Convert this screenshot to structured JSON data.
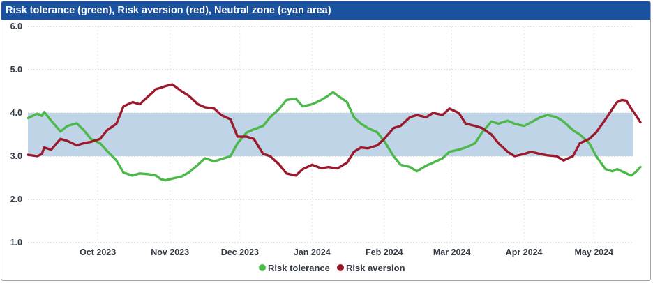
{
  "chart_data": {
    "type": "line",
    "title": "Risk tolerance (green), Risk aversion (red), Neutral zone (cyan area)",
    "ylim": [
      1.0,
      6.0
    ],
    "y_ticks": [
      "1.0",
      "2.0",
      "3.0",
      "4.0",
      "5.0",
      "6.0"
    ],
    "x_tick_labels": [
      "Oct 2023",
      "Nov 2023",
      "Dec 2023",
      "Jan 2024",
      "Feb 2024",
      "Mar 2024",
      "Apr 2024",
      "May 2024"
    ],
    "x_range": [
      "2023-09-15",
      "2024-06-01"
    ],
    "grid": true,
    "legend_position": "bottom-center",
    "neutral_zone": {
      "y0": 3.0,
      "y1": 4.0,
      "color": "#c0d4e8"
    },
    "series": [
      {
        "name": "Risk tolerance",
        "color": "#4cb849",
        "points": [
          [
            "2023-09-15",
            3.88
          ],
          [
            "2023-09-19",
            3.98
          ],
          [
            "2023-09-21",
            3.93
          ],
          [
            "2023-09-22",
            4.02
          ],
          [
            "2023-09-25",
            3.82
          ],
          [
            "2023-09-29",
            3.57
          ],
          [
            "2023-10-02",
            3.7
          ],
          [
            "2023-10-06",
            3.76
          ],
          [
            "2023-10-09",
            3.6
          ],
          [
            "2023-10-12",
            3.4
          ],
          [
            "2023-10-16",
            3.3
          ],
          [
            "2023-10-19",
            3.12
          ],
          [
            "2023-10-23",
            2.9
          ],
          [
            "2023-10-26",
            2.62
          ],
          [
            "2023-10-30",
            2.55
          ],
          [
            "2023-11-02",
            2.6
          ],
          [
            "2023-11-06",
            2.58
          ],
          [
            "2023-11-09",
            2.55
          ],
          [
            "2023-11-11",
            2.47
          ],
          [
            "2023-11-13",
            2.44
          ],
          [
            "2023-11-16",
            2.48
          ],
          [
            "2023-11-20",
            2.53
          ],
          [
            "2023-11-23",
            2.62
          ],
          [
            "2023-11-27",
            2.8
          ],
          [
            "2023-11-30",
            2.95
          ],
          [
            "2023-12-04",
            2.88
          ],
          [
            "2023-12-07",
            2.93
          ],
          [
            "2023-12-11",
            3.0
          ],
          [
            "2023-12-14",
            3.3
          ],
          [
            "2023-12-18",
            3.55
          ],
          [
            "2023-12-21",
            3.62
          ],
          [
            "2023-12-25",
            3.7
          ],
          [
            "2023-12-28",
            3.9
          ],
          [
            "2024-01-01",
            4.1
          ],
          [
            "2024-01-04",
            4.3
          ],
          [
            "2024-01-08",
            4.33
          ],
          [
            "2024-01-11",
            4.15
          ],
          [
            "2024-01-15",
            4.2
          ],
          [
            "2024-01-19",
            4.3
          ],
          [
            "2024-01-22",
            4.4
          ],
          [
            "2024-01-24",
            4.48
          ],
          [
            "2024-01-26",
            4.4
          ],
          [
            "2024-01-30",
            4.25
          ],
          [
            "2024-02-02",
            3.9
          ],
          [
            "2024-02-05",
            3.75
          ],
          [
            "2024-02-08",
            3.65
          ],
          [
            "2024-02-12",
            3.55
          ],
          [
            "2024-02-15",
            3.35
          ],
          [
            "2024-02-19",
            3.0
          ],
          [
            "2024-02-22",
            2.8
          ],
          [
            "2024-02-26",
            2.75
          ],
          [
            "2024-02-29",
            2.65
          ],
          [
            "2024-03-04",
            2.78
          ],
          [
            "2024-03-07",
            2.85
          ],
          [
            "2024-03-11",
            2.95
          ],
          [
            "2024-03-14",
            3.1
          ],
          [
            "2024-03-18",
            3.15
          ],
          [
            "2024-03-21",
            3.2
          ],
          [
            "2024-03-25",
            3.3
          ],
          [
            "2024-03-28",
            3.55
          ],
          [
            "2024-04-01",
            3.8
          ],
          [
            "2024-04-04",
            3.75
          ],
          [
            "2024-04-08",
            3.82
          ],
          [
            "2024-04-11",
            3.75
          ],
          [
            "2024-04-15",
            3.7
          ],
          [
            "2024-04-18",
            3.78
          ],
          [
            "2024-04-22",
            3.9
          ],
          [
            "2024-04-25",
            3.95
          ],
          [
            "2024-04-29",
            3.9
          ],
          [
            "2024-05-02",
            3.8
          ],
          [
            "2024-05-06",
            3.6
          ],
          [
            "2024-05-09",
            3.5
          ],
          [
            "2024-05-13",
            3.3
          ],
          [
            "2024-05-16",
            3.0
          ],
          [
            "2024-05-20",
            2.7
          ],
          [
            "2024-05-23",
            2.65
          ],
          [
            "2024-05-25",
            2.7
          ],
          [
            "2024-05-27",
            2.65
          ],
          [
            "2024-05-29",
            2.6
          ],
          [
            "2024-05-31",
            2.55
          ],
          [
            "2024-06-02",
            2.63
          ],
          [
            "2024-06-04",
            2.75
          ]
        ]
      },
      {
        "name": "Risk aversion",
        "color": "#9b1a2c",
        "points": [
          [
            "2023-09-15",
            3.03
          ],
          [
            "2023-09-19",
            3.0
          ],
          [
            "2023-09-21",
            3.05
          ],
          [
            "2023-09-22",
            3.2
          ],
          [
            "2023-09-25",
            3.15
          ],
          [
            "2023-09-29",
            3.4
          ],
          [
            "2023-10-02",
            3.35
          ],
          [
            "2023-10-06",
            3.25
          ],
          [
            "2023-10-09",
            3.3
          ],
          [
            "2023-10-12",
            3.33
          ],
          [
            "2023-10-16",
            3.4
          ],
          [
            "2023-10-19",
            3.6
          ],
          [
            "2023-10-23",
            3.75
          ],
          [
            "2023-10-26",
            4.15
          ],
          [
            "2023-10-30",
            4.25
          ],
          [
            "2023-11-02",
            4.2
          ],
          [
            "2023-11-06",
            4.4
          ],
          [
            "2023-11-09",
            4.55
          ],
          [
            "2023-11-11",
            4.58
          ],
          [
            "2023-11-13",
            4.62
          ],
          [
            "2023-11-16",
            4.66
          ],
          [
            "2023-11-20",
            4.5
          ],
          [
            "2023-11-23",
            4.4
          ],
          [
            "2023-11-27",
            4.2
          ],
          [
            "2023-11-30",
            4.13
          ],
          [
            "2023-12-04",
            4.1
          ],
          [
            "2023-12-07",
            3.95
          ],
          [
            "2023-12-11",
            3.85
          ],
          [
            "2023-12-14",
            3.45
          ],
          [
            "2023-12-18",
            3.45
          ],
          [
            "2023-12-21",
            3.4
          ],
          [
            "2023-12-25",
            3.05
          ],
          [
            "2023-12-28",
            3.0
          ],
          [
            "2024-01-01",
            2.8
          ],
          [
            "2024-01-04",
            2.6
          ],
          [
            "2024-01-08",
            2.55
          ],
          [
            "2024-01-11",
            2.7
          ],
          [
            "2024-01-15",
            2.8
          ],
          [
            "2024-01-19",
            2.72
          ],
          [
            "2024-01-22",
            2.75
          ],
          [
            "2024-01-24",
            2.73
          ],
          [
            "2024-01-26",
            2.72
          ],
          [
            "2024-01-30",
            2.85
          ],
          [
            "2024-02-02",
            3.1
          ],
          [
            "2024-02-05",
            3.2
          ],
          [
            "2024-02-08",
            3.18
          ],
          [
            "2024-02-12",
            3.25
          ],
          [
            "2024-02-15",
            3.4
          ],
          [
            "2024-02-19",
            3.65
          ],
          [
            "2024-02-22",
            3.7
          ],
          [
            "2024-02-26",
            3.9
          ],
          [
            "2024-02-29",
            3.95
          ],
          [
            "2024-03-04",
            3.9
          ],
          [
            "2024-03-07",
            4.0
          ],
          [
            "2024-03-11",
            3.95
          ],
          [
            "2024-03-14",
            4.1
          ],
          [
            "2024-03-18",
            4.0
          ],
          [
            "2024-03-21",
            3.75
          ],
          [
            "2024-03-25",
            3.7
          ],
          [
            "2024-03-28",
            3.65
          ],
          [
            "2024-04-01",
            3.5
          ],
          [
            "2024-04-04",
            3.3
          ],
          [
            "2024-04-08",
            3.1
          ],
          [
            "2024-04-11",
            3.0
          ],
          [
            "2024-04-15",
            3.05
          ],
          [
            "2024-04-18",
            3.1
          ],
          [
            "2024-04-22",
            3.05
          ],
          [
            "2024-04-25",
            3.02
          ],
          [
            "2024-04-29",
            3.0
          ],
          [
            "2024-05-02",
            2.9
          ],
          [
            "2024-05-06",
            3.0
          ],
          [
            "2024-05-09",
            3.3
          ],
          [
            "2024-05-13",
            3.4
          ],
          [
            "2024-05-16",
            3.55
          ],
          [
            "2024-05-20",
            3.85
          ],
          [
            "2024-05-23",
            4.1
          ],
          [
            "2024-05-25",
            4.25
          ],
          [
            "2024-05-27",
            4.3
          ],
          [
            "2024-05-29",
            4.28
          ],
          [
            "2024-05-31",
            4.1
          ],
          [
            "2024-06-02",
            3.95
          ],
          [
            "2024-06-04",
            3.78
          ]
        ]
      }
    ]
  }
}
